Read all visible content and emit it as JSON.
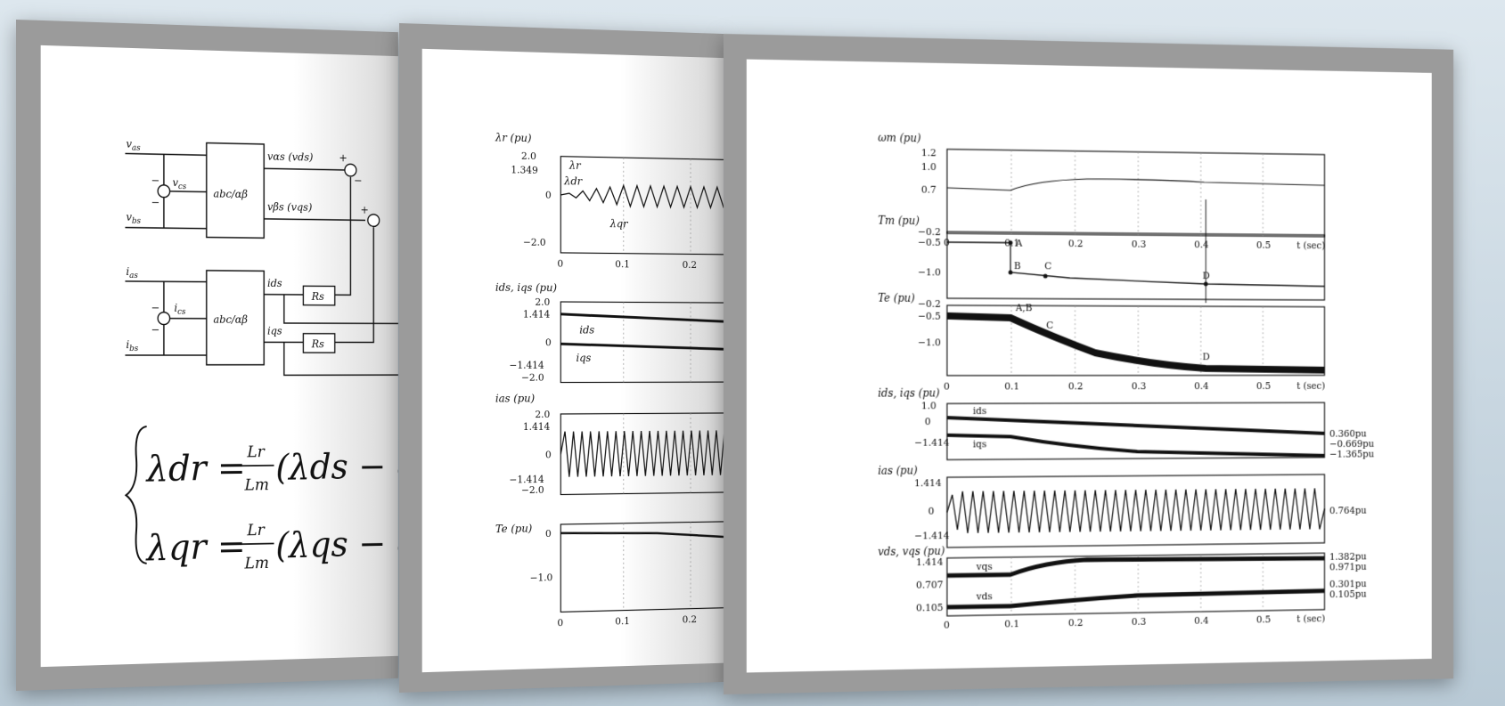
{
  "panel1": {
    "inputs": {
      "vas": "v",
      "vas_sub": "as",
      "vcs": "v",
      "vcs_sub": "cs",
      "vbs": "v",
      "vbs_sub": "bs",
      "ias": "i",
      "ias_sub": "as",
      "ics": "i",
      "ics_sub": "cs",
      "ibs": "i",
      "ibs_sub": "bs"
    },
    "block_label": "abc/αβ",
    "outputs": {
      "v_alpha": "vαs (vds)",
      "v_beta": "vβs (vqs)",
      "i_ds": "ids",
      "i_qs": "iqs"
    },
    "resistor": "Rs",
    "signs": {
      "plus": "+",
      "minus": "−"
    },
    "equations": {
      "line1_lhs": "λdr = ",
      "line1_frac_num": "Lr",
      "line1_frac_den": "Lm",
      "line1_rhs": "(λds − σ Ls i",
      "line2_lhs": "λqr = ",
      "line2_frac_num": "Lr",
      "line2_frac_den": "Lm",
      "line2_rhs": "(λqs − σ Ls i"
    }
  },
  "panel2": {
    "charts": [
      {
        "ylabel": "λr (pu)",
        "yticks": [
          "2.0",
          "1.349",
          "0",
          "−2.0"
        ],
        "annotations": [
          "λr",
          "λdr",
          "λqr"
        ]
      },
      {
        "ylabel": "ids, iqs (pu)",
        "yticks": [
          "2.0",
          "1.414",
          "0",
          "−1.414",
          "−2.0"
        ],
        "annotations": [
          "ids",
          "iqs"
        ]
      },
      {
        "ylabel": "ias (pu)",
        "yticks": [
          "2.0",
          "1.414",
          "0",
          "−1.414",
          "−2.0"
        ],
        "annotations": []
      },
      {
        "ylabel": "Te (pu)",
        "yticks": [
          "0",
          "−1.0"
        ],
        "annotations": []
      }
    ],
    "xticks_first": [
      "0",
      "0.1",
      "0.2"
    ],
    "xticks_last": [
      "0",
      "0.1",
      "0.2"
    ]
  },
  "panel3": {
    "charts": [
      {
        "ylabel": "ωm (pu)",
        "yticks": [
          "1.2",
          "1.0",
          "0.7"
        ],
        "annotations": [],
        "right_labels": []
      },
      {
        "ylabel": "Tm (pu)",
        "yticks": [
          "−0.2",
          "−0.5",
          "−1.0"
        ],
        "annotations": [
          "A",
          "B",
          "C",
          "D"
        ],
        "right_labels": []
      },
      {
        "ylabel": "Te (pu)",
        "yticks": [
          "−0.2",
          "−0.5",
          "−1.0"
        ],
        "annotations": [
          "A,B",
          "C",
          "D"
        ],
        "right_labels": []
      },
      {
        "ylabel": "ids, iqs (pu)",
        "yticks": [
          "1.0",
          "0",
          "−1.414"
        ],
        "annotations": [
          "ids",
          "iqs"
        ],
        "right_labels": [
          "0.360pu",
          "−0.669pu",
          "−1.365pu"
        ]
      },
      {
        "ylabel": "ias (pu)",
        "yticks": [
          "1.414",
          "0",
          "−1.414"
        ],
        "annotations": [],
        "right_labels": [
          "0.764pu"
        ]
      },
      {
        "ylabel": "vds, vqs (pu)",
        "yticks": [
          "1.414",
          "0.707",
          "0.105"
        ],
        "annotations": [
          "vqs",
          "vds"
        ],
        "right_labels": [
          "1.382pu",
          "0.971pu",
          "0.301pu",
          "0.105pu"
        ]
      }
    ],
    "xticks": [
      "0",
      "0.1",
      "0.2",
      "0.3",
      "0.4",
      "0.5"
    ],
    "xunit": "t (sec)"
  }
}
